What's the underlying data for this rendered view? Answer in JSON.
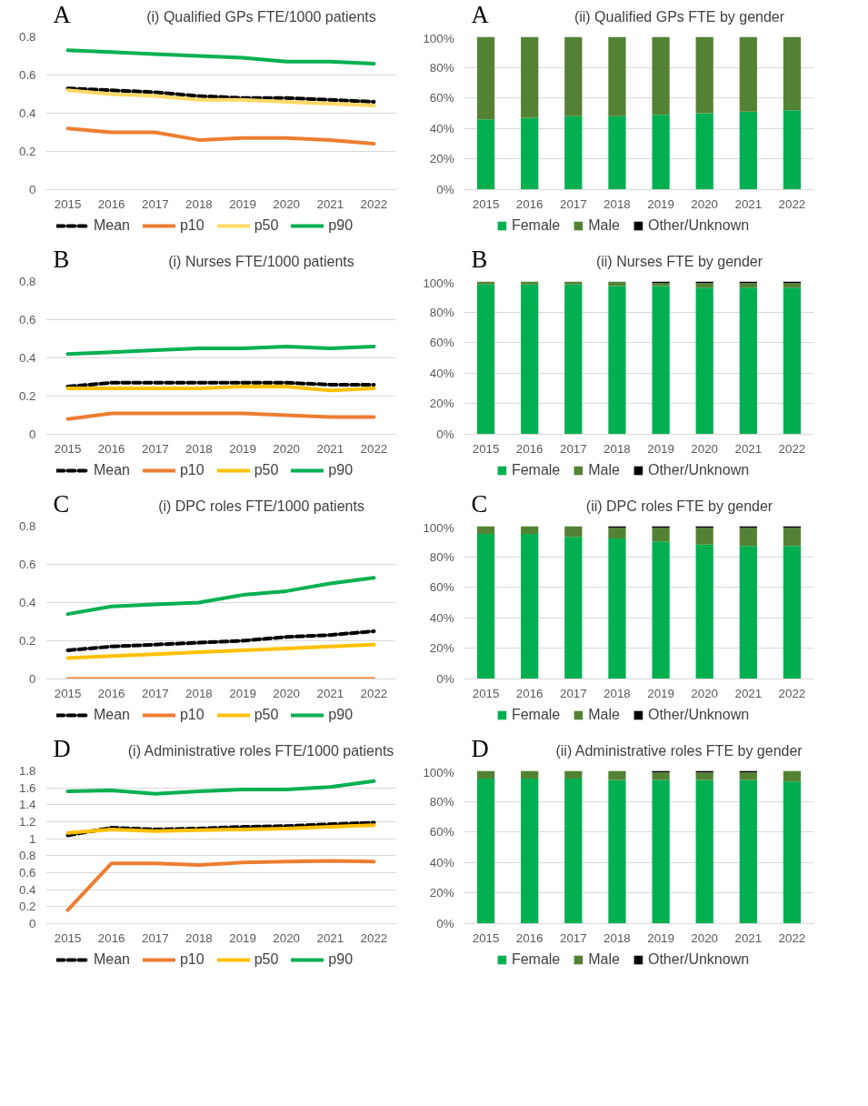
{
  "chart_data": [
    {
      "type": "line",
      "title": "(i) Qualified GPs FTE/1000 patients",
      "annotations": [
        "A"
      ],
      "categories": [
        "2015",
        "2016",
        "2017",
        "2018",
        "2019",
        "2020",
        "2021",
        "2022"
      ],
      "ylim": [
        0,
        0.8
      ],
      "yticks": [
        0,
        0.2,
        0.4,
        0.6,
        0.8
      ],
      "grid": "y",
      "legend": "bottom",
      "series": [
        {
          "name": "Mean",
          "color": "#000000",
          "line_style": "dashed",
          "values": [
            0.53,
            0.52,
            0.51,
            0.49,
            0.48,
            0.48,
            0.47,
            0.46
          ]
        },
        {
          "name": "p10",
          "color": "#ed7d31",
          "values": [
            0.32,
            0.3,
            0.3,
            0.26,
            0.27,
            0.27,
            0.26,
            0.24
          ]
        },
        {
          "name": "p50",
          "color": "#ffd966",
          "values": [
            0.52,
            0.5,
            0.49,
            0.47,
            0.47,
            0.46,
            0.45,
            0.44
          ]
        },
        {
          "name": "p90",
          "color": "#00b050",
          "values": [
            0.73,
            0.72,
            0.71,
            0.7,
            0.69,
            0.67,
            0.67,
            0.66
          ]
        }
      ]
    },
    {
      "type": "bar",
      "stacked": true,
      "title": "(ii) Qualified GPs FTE by gender",
      "annotations": [
        "A"
      ],
      "categories": [
        "2015",
        "2016",
        "2017",
        "2018",
        "2019",
        "2020",
        "2021",
        "2022"
      ],
      "ylim": [
        0,
        100
      ],
      "yticks": [
        {
          "value": 0,
          "label": "0%"
        },
        {
          "value": 20,
          "label": "20%"
        },
        {
          "value": 40,
          "label": "40%"
        },
        {
          "value": 60,
          "label": "60%"
        },
        {
          "value": 80,
          "label": "80%"
        },
        {
          "value": 100,
          "label": "100%"
        }
      ],
      "grid": "y",
      "legend": "bottom",
      "series": [
        {
          "name": "Female",
          "color": "#00b050",
          "values": [
            46,
            47,
            48,
            48,
            49,
            50,
            51,
            52
          ]
        },
        {
          "name": "Male",
          "color": "#548235",
          "values": [
            54,
            53,
            52,
            52,
            51,
            50,
            49,
            48
          ]
        },
        {
          "name": "Other/Unknown",
          "color": "#000000",
          "values": [
            0,
            0,
            0,
            0,
            0,
            0,
            0,
            0
          ]
        }
      ]
    },
    {
      "type": "line",
      "title": "(i) Nurses FTE/1000 patients",
      "annotations": [
        "B"
      ],
      "categories": [
        "2015",
        "2016",
        "2017",
        "2018",
        "2019",
        "2020",
        "2021",
        "2022"
      ],
      "ylim": [
        0,
        0.8
      ],
      "yticks": [
        0,
        0.2,
        0.4,
        0.6,
        0.8
      ],
      "grid": "y",
      "legend": "bottom",
      "series": [
        {
          "name": "Mean",
          "color": "#000000",
          "line_style": "dashed",
          "values": [
            0.25,
            0.27,
            0.27,
            0.27,
            0.27,
            0.27,
            0.26,
            0.26
          ]
        },
        {
          "name": "p10",
          "color": "#ed7d31",
          "values": [
            0.08,
            0.11,
            0.11,
            0.11,
            0.11,
            0.1,
            0.09,
            0.09
          ]
        },
        {
          "name": "p50",
          "color": "#ffc000",
          "values": [
            0.24,
            0.24,
            0.24,
            0.24,
            0.25,
            0.25,
            0.23,
            0.24
          ]
        },
        {
          "name": "p90",
          "color": "#00b050",
          "values": [
            0.42,
            0.43,
            0.44,
            0.45,
            0.45,
            0.46,
            0.45,
            0.46
          ]
        }
      ]
    },
    {
      "type": "bar",
      "stacked": true,
      "title": "(ii) Nurses FTE by gender",
      "annotations": [
        "B"
      ],
      "categories": [
        "2015",
        "2016",
        "2017",
        "2018",
        "2019",
        "2020",
        "2021",
        "2022"
      ],
      "ylim": [
        0,
        100
      ],
      "yticks": [
        {
          "value": 0,
          "label": "0%"
        },
        {
          "value": 20,
          "label": "20%"
        },
        {
          "value": 40,
          "label": "40%"
        },
        {
          "value": 60,
          "label": "60%"
        },
        {
          "value": 80,
          "label": "80%"
        },
        {
          "value": 100,
          "label": "100%"
        }
      ],
      "grid": "y",
      "legend": "bottom",
      "series": [
        {
          "name": "Female",
          "color": "#00b050",
          "values": [
            98,
            98,
            98,
            97,
            97,
            96,
            96,
            96
          ]
        },
        {
          "name": "Male",
          "color": "#548235",
          "values": [
            2,
            2,
            2,
            3,
            2,
            3,
            3,
            3
          ]
        },
        {
          "name": "Other/Unknown",
          "color": "#000000",
          "values": [
            0,
            0,
            0,
            0,
            1,
            1,
            1,
            1
          ]
        }
      ]
    },
    {
      "type": "line",
      "title": "(i) DPC roles FTE/1000 patients",
      "annotations": [
        "C"
      ],
      "categories": [
        "2015",
        "2016",
        "2017",
        "2018",
        "2019",
        "2020",
        "2021",
        "2022"
      ],
      "ylim": [
        0,
        0.8
      ],
      "yticks": [
        0,
        0.2,
        0.4,
        0.6,
        0.8
      ],
      "grid": "y",
      "legend": "bottom",
      "series": [
        {
          "name": "Mean",
          "color": "#000000",
          "line_style": "dashed",
          "values": [
            0.15,
            0.17,
            0.18,
            0.19,
            0.2,
            0.22,
            0.23,
            0.25
          ]
        },
        {
          "name": "p10",
          "color": "#ed7d31",
          "values": [
            0,
            0,
            0,
            0,
            0,
            0,
            0,
            0
          ]
        },
        {
          "name": "p50",
          "color": "#ffc000",
          "values": [
            0.11,
            0.12,
            0.13,
            0.14,
            0.15,
            0.16,
            0.17,
            0.18
          ]
        },
        {
          "name": "p90",
          "color": "#00b050",
          "values": [
            0.34,
            0.38,
            0.39,
            0.4,
            0.44,
            0.46,
            0.5,
            0.53
          ]
        }
      ]
    },
    {
      "type": "bar",
      "stacked": true,
      "title": "(ii) DPC roles FTE by gender",
      "annotations": [
        "C"
      ],
      "categories": [
        "2015",
        "2016",
        "2017",
        "2018",
        "2019",
        "2020",
        "2021",
        "2022"
      ],
      "ylim": [
        0,
        100
      ],
      "yticks": [
        {
          "value": 0,
          "label": "0%"
        },
        {
          "value": 20,
          "label": "20%"
        },
        {
          "value": 40,
          "label": "40%"
        },
        {
          "value": 60,
          "label": "60%"
        },
        {
          "value": 80,
          "label": "80%"
        },
        {
          "value": 100,
          "label": "100%"
        }
      ],
      "grid": "y",
      "legend": "bottom",
      "series": [
        {
          "name": "Female",
          "color": "#00b050",
          "values": [
            95,
            95,
            93,
            92,
            90,
            88,
            87,
            87
          ]
        },
        {
          "name": "Male",
          "color": "#548235",
          "values": [
            5,
            5,
            7,
            7,
            9,
            11,
            12,
            12
          ]
        },
        {
          "name": "Other/Unknown",
          "color": "#000000",
          "values": [
            0,
            0,
            0,
            1,
            1,
            1,
            1,
            1
          ]
        }
      ]
    },
    {
      "type": "line",
      "title": "(i) Administrative roles FTE/1000 patients",
      "annotations": [
        "D"
      ],
      "categories": [
        "2015",
        "2016",
        "2017",
        "2018",
        "2019",
        "2020",
        "2021",
        "2022"
      ],
      "ylim": [
        0,
        1.8
      ],
      "yticks": [
        0,
        0.2,
        0.4,
        0.6,
        0.8,
        1,
        1.2,
        1.4,
        1.6,
        1.8
      ],
      "grid": "y",
      "legend": "bottom",
      "series": [
        {
          "name": "Mean",
          "color": "#000000",
          "line_style": "dashed",
          "values": [
            1.04,
            1.13,
            1.11,
            1.12,
            1.14,
            1.15,
            1.17,
            1.19
          ]
        },
        {
          "name": "p10",
          "color": "#ed7d31",
          "values": [
            0.16,
            0.71,
            0.71,
            0.69,
            0.72,
            0.73,
            0.74,
            0.73
          ]
        },
        {
          "name": "p50",
          "color": "#ffc000",
          "values": [
            1.07,
            1.11,
            1.09,
            1.1,
            1.11,
            1.12,
            1.14,
            1.16
          ]
        },
        {
          "name": "p90",
          "color": "#00b050",
          "values": [
            1.56,
            1.57,
            1.53,
            1.56,
            1.58,
            1.58,
            1.61,
            1.68
          ]
        }
      ]
    },
    {
      "type": "bar",
      "stacked": true,
      "title": "(ii) Administrative roles FTE by gender",
      "annotations": [
        "D"
      ],
      "categories": [
        "2015",
        "2016",
        "2017",
        "2018",
        "2019",
        "2020",
        "2021",
        "2022"
      ],
      "ylim": [
        0,
        100
      ],
      "yticks": [
        {
          "value": 0,
          "label": "0%"
        },
        {
          "value": 20,
          "label": "20%"
        },
        {
          "value": 40,
          "label": "40%"
        },
        {
          "value": 60,
          "label": "60%"
        },
        {
          "value": 80,
          "label": "80%"
        },
        {
          "value": 100,
          "label": "100%"
        }
      ],
      "grid": "y",
      "legend": "bottom",
      "series": [
        {
          "name": "Female",
          "color": "#00b050",
          "values": [
            95,
            95,
            95,
            94,
            94,
            94,
            94,
            93
          ]
        },
        {
          "name": "Male",
          "color": "#548235",
          "values": [
            5,
            5,
            5,
            6,
            5,
            5,
            5,
            7
          ]
        },
        {
          "name": "Other/Unknown",
          "color": "#000000",
          "values": [
            0,
            0,
            0,
            0,
            1,
            1,
            1,
            0
          ]
        }
      ]
    }
  ]
}
